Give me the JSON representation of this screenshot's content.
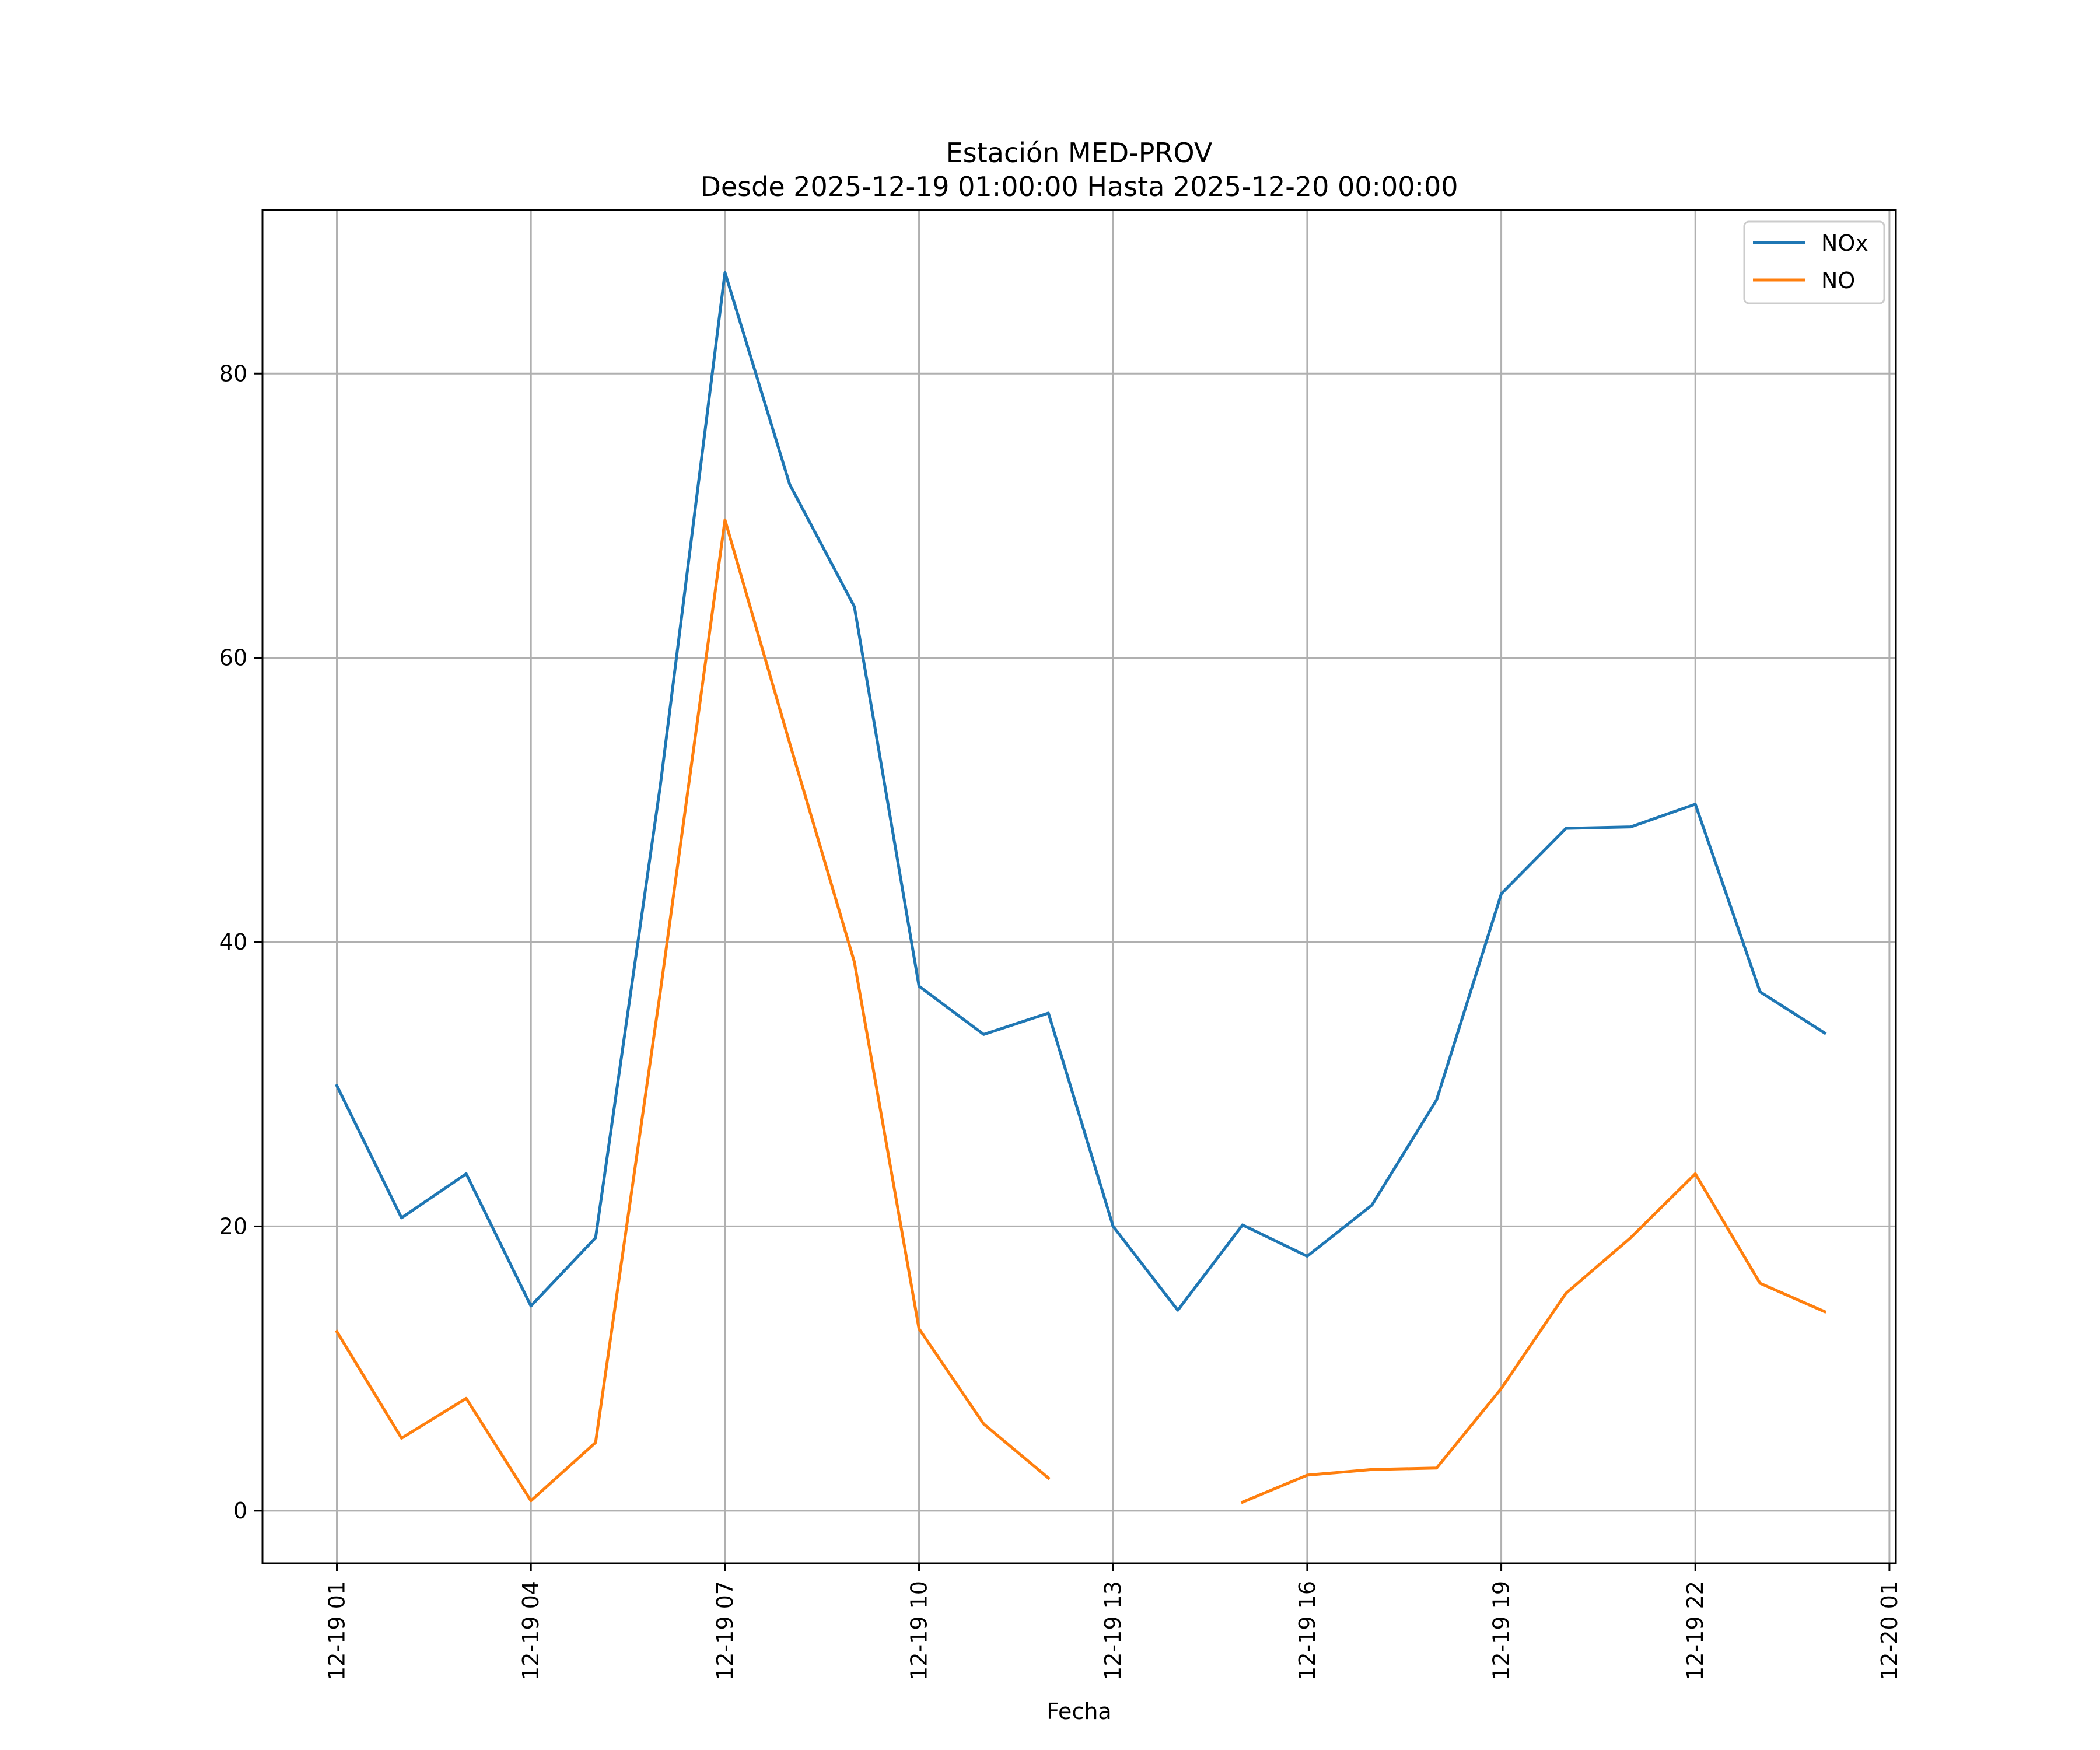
{
  "chart_data": {
    "type": "line",
    "title_line1": "Estación MED-PROV",
    "title_line2": "Desde 2025-12-19 01:00:00 Hasta 2025-12-20 00:00:00",
    "xlabel": "Fecha",
    "ylabel": "",
    "x": [
      "12-19 01",
      "12-19 02",
      "12-19 03",
      "12-19 04",
      "12-19 05",
      "12-19 06",
      "12-19 07",
      "12-19 08",
      "12-19 09",
      "12-19 10",
      "12-19 11",
      "12-19 12",
      "12-19 13",
      "12-19 14",
      "12-19 15",
      "12-19 16",
      "12-19 17",
      "12-19 18",
      "12-19 19",
      "12-19 20",
      "12-19 21",
      "12-19 22",
      "12-19 23",
      "12-20 00"
    ],
    "x_ticks": [
      "12-19 01",
      "12-19 04",
      "12-19 07",
      "12-19 10",
      "12-19 13",
      "12-19 16",
      "12-19 19",
      "12-19 22",
      "12-20 01"
    ],
    "xlim_hours": [
      -1.15,
      24.1
    ],
    "ylim": [
      -3.7,
      91.5
    ],
    "y_ticks": [
      0,
      20,
      40,
      60,
      80
    ],
    "grid": true,
    "legend_position": "top-right",
    "series": [
      {
        "name": "NOx",
        "color": "#1f77b4",
        "values": [
          29.9,
          20.6,
          23.7,
          14.4,
          19.2,
          51.0,
          87.1,
          72.2,
          63.6,
          36.9,
          33.5,
          35.0,
          20.0,
          14.1,
          20.1,
          17.9,
          21.5,
          28.9,
          43.4,
          48.0,
          48.1,
          49.7,
          36.5,
          33.6
        ]
      },
      {
        "name": "NO",
        "color": "#ff7f0e",
        "values": [
          12.6,
          5.1,
          7.9,
          0.7,
          4.8,
          36.5,
          69.7,
          54.0,
          38.6,
          12.8,
          6.1,
          2.3,
          null,
          null,
          0.6,
          2.5,
          2.9,
          3.0,
          8.6,
          15.3,
          19.2,
          23.7,
          16.0,
          14.0
        ]
      }
    ]
  }
}
